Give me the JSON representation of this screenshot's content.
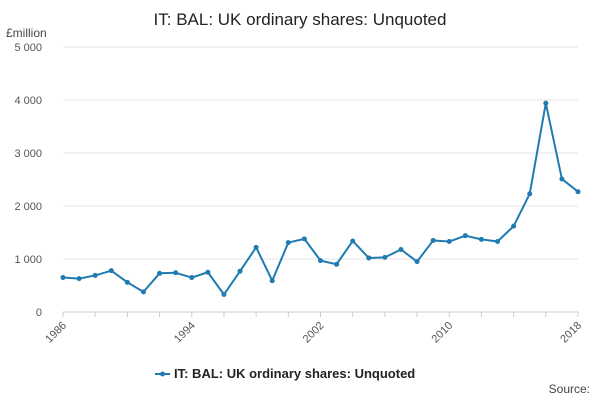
{
  "chart_data": {
    "type": "line",
    "title": "IT: BAL: UK ordinary shares: Unquoted",
    "ylabel": "£million",
    "xlabel": "",
    "xlim": [
      1986,
      2018
    ],
    "ylim": [
      0,
      5000
    ],
    "y_ticks": [
      0,
      1000,
      2000,
      3000,
      4000,
      5000
    ],
    "y_tick_labels": [
      "0",
      "1 000",
      "2 000",
      "3 000",
      "4 000",
      "5 000"
    ],
    "x_ticks": [
      1986,
      1994,
      2002,
      2010,
      2018
    ],
    "x_tick_labels": [
      "1986",
      "1994",
      "2002",
      "2010",
      "2018"
    ],
    "grid": true,
    "legend": "bottom-center",
    "series": [
      {
        "name": "IT: BAL: UK ordinary shares: Unquoted",
        "color": "#1f7bb0",
        "x": [
          1986,
          1987,
          1988,
          1989,
          1990,
          1991,
          1992,
          1993,
          1994,
          1995,
          1996,
          1997,
          1998,
          1999,
          2000,
          2001,
          2002,
          2003,
          2004,
          2005,
          2006,
          2007,
          2008,
          2009,
          2010,
          2011,
          2012,
          2013,
          2014,
          2015,
          2016,
          2017,
          2018
        ],
        "y": [
          650,
          630,
          690,
          780,
          560,
          380,
          730,
          740,
          650,
          750,
          330,
          770,
          1220,
          590,
          1310,
          1380,
          970,
          900,
          1340,
          1020,
          1030,
          1180,
          950,
          1350,
          1330,
          1440,
          1370,
          1330,
          1620,
          2230,
          3940,
          2510,
          2270
        ]
      }
    ]
  },
  "source_label": "Source:"
}
